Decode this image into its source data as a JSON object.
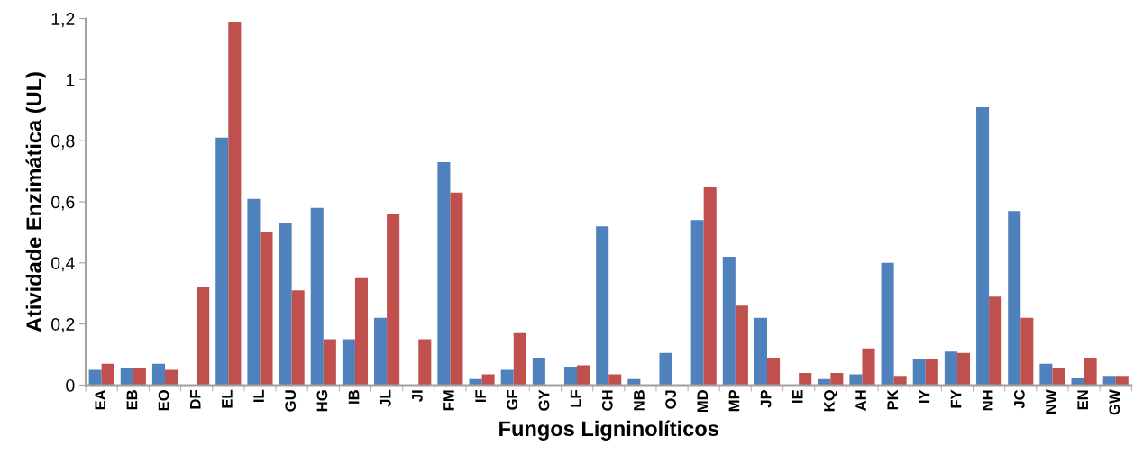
{
  "chart_data": {
    "type": "bar",
    "xlabel": "Fungos Ligninolíticos",
    "ylabel": "Atividade Enzimática (UL)",
    "categories": [
      "EA",
      "EB",
      "EO",
      "DF",
      "EL",
      "IL",
      "GU",
      "HG",
      "IB",
      "JL",
      "JI",
      "FM",
      "IF",
      "GF",
      "GY",
      "LF",
      "CH",
      "NB",
      "OJ",
      "MD",
      "MP",
      "JP",
      "IE",
      "KQ",
      "AH",
      "PK",
      "IY",
      "FY",
      "NH",
      "JC",
      "NW",
      "EN",
      "GW"
    ],
    "series": [
      {
        "color": "#4f81bd",
        "values": [
          0.05,
          0.055,
          0.07,
          0,
          0.81,
          0.61,
          0.53,
          0.58,
          0.15,
          0.22,
          0,
          0.73,
          0.02,
          0.05,
          0.09,
          0.06,
          0.52,
          0.02,
          0.105,
          0.54,
          0.42,
          0.22,
          0,
          0.02,
          0.035,
          0.4,
          0.085,
          0.11,
          0.91,
          0.57,
          0.07,
          0.025,
          0.03
        ]
      },
      {
        "color": "#c0504d",
        "values": [
          0.07,
          0.055,
          0.05,
          0.32,
          1.19,
          0.5,
          0.31,
          0.15,
          0.35,
          0.56,
          0.15,
          0.63,
          0.035,
          0.17,
          0,
          0.065,
          0.035,
          0,
          0,
          0.65,
          0.26,
          0.09,
          0.04,
          0.04,
          0.12,
          0.03,
          0.085,
          0.105,
          0.29,
          0.22,
          0.055,
          0.09,
          0.03
        ]
      }
    ],
    "ylim": [
      0,
      1.2
    ],
    "yticks": [
      0,
      {
        "value": 0.2,
        "label": "0,2"
      },
      {
        "value": 0.4,
        "label": "0,4"
      },
      {
        "value": 0.6,
        "label": "0,6"
      },
      {
        "value": 0.8,
        "label": "0,8"
      },
      1,
      {
        "value": 1.2,
        "label": "1,2"
      }
    ],
    "grid": false
  }
}
